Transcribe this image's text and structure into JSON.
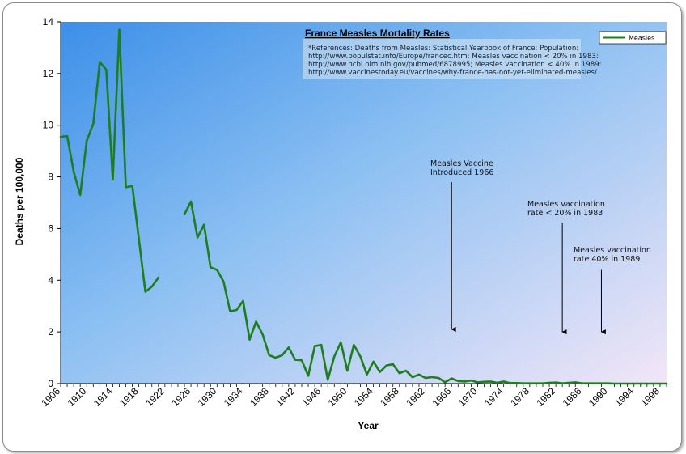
{
  "chart_data": {
    "type": "line",
    "title": "France Measles Mortality Rates",
    "references": [
      "*References: Deaths from Measles: Statistical Yearbook of France; Population:",
      "http://www.populstat.info/Europe/francec.htm; Measles vaccination < 20% in 1983:",
      "http://www.ncbi.nlm.nih.gov/pubmed/6878995; Measles vaccination < 40% in 1989:",
      "http://www.vaccinestoday.eu/vaccines/why-france-has-not-yet-eliminated-measles/"
    ],
    "xlabel": "Year",
    "ylabel": "Deaths per 100,000",
    "xlim": [
      1906,
      1999
    ],
    "ylim": [
      0,
      14
    ],
    "yticks": [
      0,
      2,
      4,
      6,
      8,
      10,
      12,
      14
    ],
    "xticks": [
      1906,
      1910,
      1914,
      1918,
      1922,
      1926,
      1930,
      1934,
      1938,
      1942,
      1946,
      1950,
      1954,
      1958,
      1962,
      1966,
      1970,
      1974,
      1978,
      1982,
      1986,
      1990,
      1994,
      1998
    ],
    "grid": false,
    "legend": {
      "position": "top-right",
      "entries": [
        "Measles"
      ]
    },
    "series": [
      {
        "name": "Measles",
        "color": "#1e7d1e",
        "segments": [
          [
            [
              1906,
              9.55
            ],
            [
              1907,
              9.58
            ],
            [
              1908,
              8.2
            ],
            [
              1909,
              7.3
            ],
            [
              1910,
              9.4
            ],
            [
              1911,
              10.05
            ],
            [
              1912,
              12.45
            ],
            [
              1913,
              12.15
            ],
            [
              1914,
              7.9
            ],
            [
              1915,
              13.7
            ],
            [
              1916,
              7.6
            ],
            [
              1917,
              7.65
            ],
            [
              1918,
              5.6
            ],
            [
              1919,
              3.55
            ],
            [
              1920,
              3.75
            ],
            [
              1921,
              4.1
            ]
          ],
          [
            [
              1925,
              6.55
            ],
            [
              1926,
              7.05
            ],
            [
              1927,
              5.65
            ],
            [
              1928,
              6.15
            ],
            [
              1929,
              4.5
            ],
            [
              1930,
              4.4
            ],
            [
              1931,
              3.95
            ],
            [
              1932,
              2.8
            ],
            [
              1933,
              2.85
            ],
            [
              1934,
              3.2
            ],
            [
              1935,
              1.7
            ],
            [
              1936,
              2.4
            ],
            [
              1937,
              1.9
            ],
            [
              1938,
              1.1
            ],
            [
              1939,
              1.0
            ],
            [
              1940,
              1.1
            ],
            [
              1941,
              1.4
            ],
            [
              1942,
              0.92
            ],
            [
              1943,
              0.9
            ],
            [
              1944,
              0.3
            ],
            [
              1945,
              1.45
            ],
            [
              1946,
              1.5
            ],
            [
              1947,
              0.15
            ],
            [
              1948,
              1.05
            ],
            [
              1949,
              1.6
            ],
            [
              1950,
              0.5
            ],
            [
              1951,
              1.5
            ],
            [
              1952,
              1.05
            ],
            [
              1953,
              0.35
            ],
            [
              1954,
              0.85
            ],
            [
              1955,
              0.45
            ],
            [
              1956,
              0.7
            ],
            [
              1957,
              0.75
            ],
            [
              1958,
              0.4
            ],
            [
              1959,
              0.5
            ],
            [
              1960,
              0.25
            ],
            [
              1961,
              0.35
            ],
            [
              1962,
              0.22
            ],
            [
              1963,
              0.25
            ],
            [
              1964,
              0.22
            ],
            [
              1965,
              0.05
            ],
            [
              1966,
              0.2
            ],
            [
              1967,
              0.1
            ],
            [
              1968,
              0.08
            ],
            [
              1969,
              0.12
            ],
            [
              1970,
              0.05
            ],
            [
              1971,
              0.07
            ],
            [
              1972,
              0.08
            ],
            [
              1973,
              0.03
            ],
            [
              1974,
              0.08
            ],
            [
              1975,
              0.02
            ],
            [
              1976,
              0.02
            ],
            [
              1977,
              0.01
            ],
            [
              1978,
              0.01
            ],
            [
              1979,
              0.01
            ],
            [
              1980,
              0.01
            ],
            [
              1981,
              0.03
            ],
            [
              1982,
              0.04
            ],
            [
              1983,
              0.01
            ],
            [
              1984,
              0.03
            ],
            [
              1985,
              0.05
            ],
            [
              1986,
              0.01
            ],
            [
              1987,
              0.01
            ],
            [
              1988,
              0.01
            ],
            [
              1989,
              0.01
            ],
            [
              1990,
              0.01
            ],
            [
              1991,
              0.0
            ],
            [
              1992,
              0.0
            ],
            [
              1993,
              0.0
            ],
            [
              1994,
              0.0
            ],
            [
              1995,
              0.0
            ],
            [
              1996,
              0.0
            ],
            [
              1997,
              0.0
            ],
            [
              1998,
              0.0
            ],
            [
              1999,
              0.0
            ]
          ]
        ]
      }
    ],
    "annotations": [
      {
        "lines": [
          "Measles Vaccine",
          "Introduced 1966"
        ],
        "arrow_year": 1966,
        "arrow_top": 7.8,
        "arrow_bottom": 2.1
      },
      {
        "lines": [
          "Measles vaccination",
          "rate < 20% in 1983"
        ],
        "arrow_year": 1983,
        "arrow_top": 6.2,
        "arrow_bottom": 2.0
      },
      {
        "lines": [
          "Measles vaccination",
          "rate 40% in 1989"
        ],
        "arrow_year": 1989,
        "arrow_top": 4.4,
        "arrow_bottom": 2.0
      }
    ]
  }
}
